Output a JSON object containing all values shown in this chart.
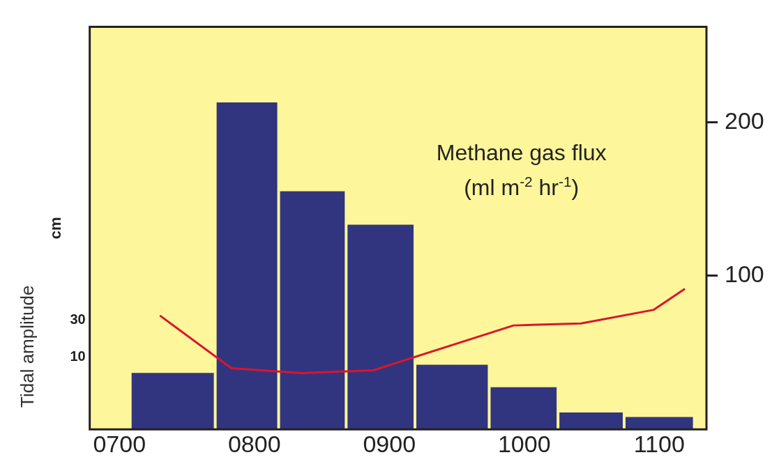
{
  "chart_data": {
    "type": "histogram",
    "annotations": [
      "Methane gas flux (ml m$^{-2}$ hr$^{-1}$)",
      "Tidal amplitude"
    ],
    "y2label": "cm",
    "bins": [
      708,
      771,
      818,
      868,
      919,
      974,
      1025,
      1074,
      1126
    ],
    "values": [
      36.7,
      212.8,
      154.9,
      133.2,
      42,
      27.4,
      11,
      8
    ],
    "color": "#31357f",
    "series": [
      {
        "type": "line",
        "axis": "y2",
        "color": "#d9152f",
        "x": [
          730,
          783,
          835,
          888,
          992,
          1042,
          1096,
          1119
        ],
        "values": [
          32.4,
          4.2,
          1.6,
          3.1,
          27.1,
          28.2,
          35.5,
          46.7
        ]
      }
    ],
    "xlim": [
      678,
      1135
    ],
    "xticks": [
      {
        "value": 700,
        "label": "0700"
      },
      {
        "value": 800,
        "label": "0800"
      },
      {
        "value": 900,
        "label": "0900"
      },
      {
        "value": 1000,
        "label": "1000"
      },
      {
        "value": 1100,
        "label": "1100"
      }
    ],
    "ylim": [
      0,
      262
    ],
    "yticks": [
      100,
      200
    ],
    "y2lim": [
      -28.5,
      187
    ],
    "y2ticks": [
      10,
      30
    ],
    "grid": false,
    "legend": false
  }
}
